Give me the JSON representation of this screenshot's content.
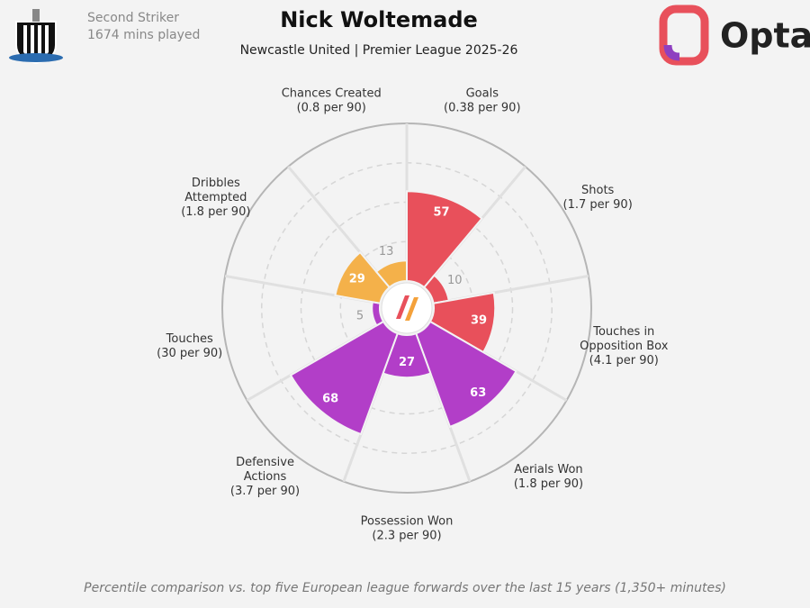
{
  "chart_data": {
    "type": "pizza",
    "title": "Nick Woltemade",
    "subtitle": "Newcastle United | Premier League 2025-26",
    "position": "Second Striker",
    "minutes": "1674 mins played",
    "brand": "Opta",
    "footnote": "Percentile comparison vs. top five European league forwards over the last 15 years (1,350+ minutes)",
    "categories": [
      [
        "Goals"
      ],
      [
        "Shots"
      ],
      [
        "Touches in",
        "Opposition Box"
      ],
      [
        "Aerials Won"
      ],
      [
        "Possession Won"
      ],
      [
        "Defensive",
        "Actions"
      ],
      [
        "Touches"
      ],
      [
        "Dribbles",
        "Attempted"
      ],
      [
        "Chances Created"
      ]
    ],
    "per90_labels": [
      "(0.38 per 90)",
      "(1.7 per 90)",
      "(4.1 per 90)",
      "(1.8 per 90)",
      "(2.3 per 90)",
      "(3.7 per 90)",
      "(30 per 90)",
      "(1.8 per 90)",
      "(0.8 per 90)"
    ],
    "values": [
      57,
      10,
      39,
      63,
      27,
      68,
      5,
      29,
      13
    ],
    "colors": [
      "#e8505b",
      "#e8505b",
      "#e8505b",
      "#b23ec8",
      "#b23ec8",
      "#b23ec8",
      "#b23ec8",
      "#f4b14a",
      "#f4b14a"
    ],
    "rlim": [
      0,
      100
    ]
  }
}
